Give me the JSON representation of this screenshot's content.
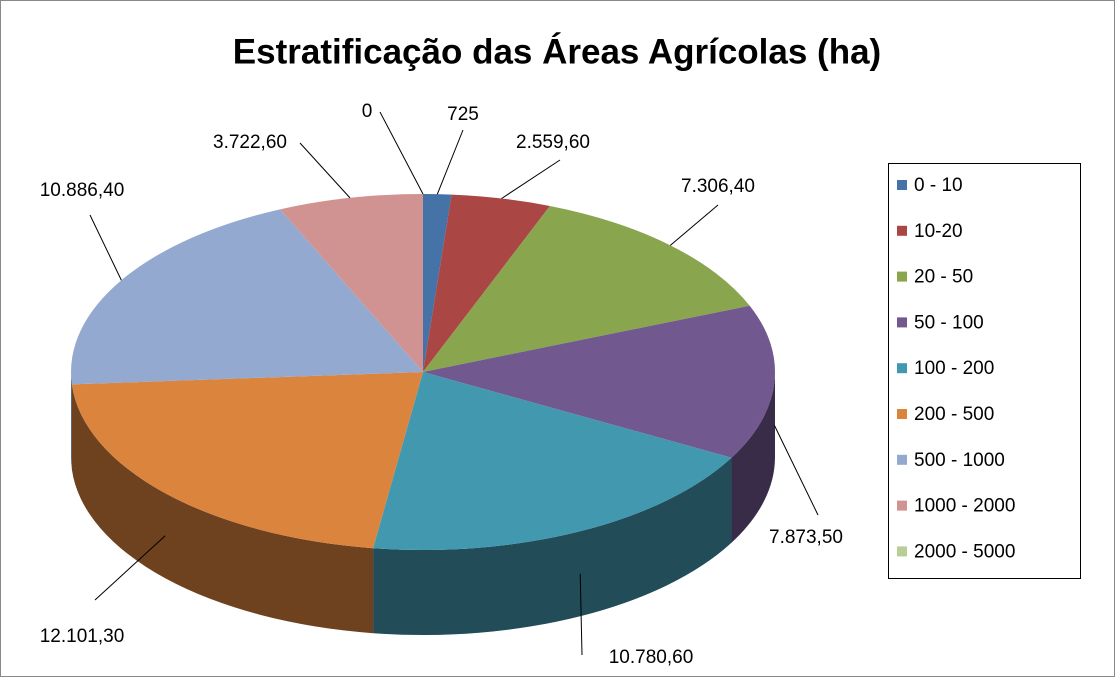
{
  "chart_data": {
    "type": "pie3d",
    "title": "Estratificação das Áreas Agrícolas (ha)",
    "categories": [
      "0 - 10",
      "10-20",
      "20 - 50",
      "50 - 100",
      "100 - 200",
      "200 - 500",
      "500 - 1000",
      "1000 - 2000",
      "2000 - 5000"
    ],
    "values": [
      725,
      2559.6,
      7306.4,
      7873.5,
      10780.6,
      12101.3,
      10886.4,
      3722.6,
      0
    ],
    "value_labels": [
      "725",
      "2.559,60",
      "7.306,40",
      "7.873,50",
      "10.780,60",
      "12.101,30",
      "10.886,40",
      "3.722,60",
      "0"
    ],
    "colors": [
      "#4572a7",
      "#aa4643",
      "#89a54e",
      "#71588f",
      "#4198af",
      "#db843d",
      "#93a9cf",
      "#d19392",
      "#b9cd96"
    ],
    "legend": "right"
  }
}
